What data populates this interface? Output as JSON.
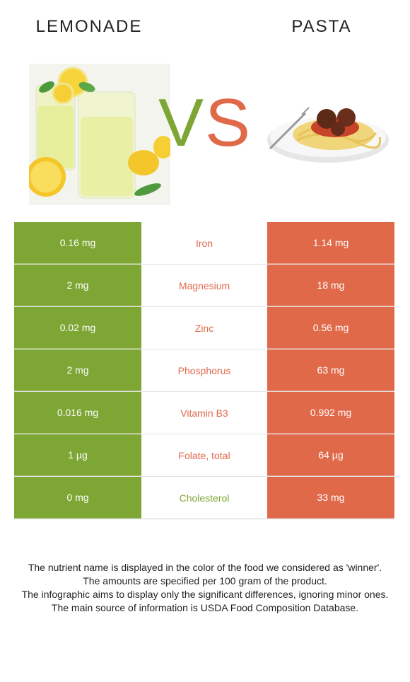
{
  "colors": {
    "left_food": "#7ea635",
    "right_food": "#e0694a"
  },
  "header": {
    "left_title": "LEMONADE",
    "right_title": "PASTA",
    "vs_v": "V",
    "vs_s": "S"
  },
  "images": {
    "left": "lemonade-glasses-image",
    "right": "spaghetti-meatballs-image"
  },
  "rows": [
    {
      "left": "0.16 mg",
      "nutrient": "Iron",
      "right": "1.14 mg",
      "winner": "right"
    },
    {
      "left": "2 mg",
      "nutrient": "Magnesium",
      "right": "18 mg",
      "winner": "right"
    },
    {
      "left": "0.02 mg",
      "nutrient": "Zinc",
      "right": "0.56 mg",
      "winner": "right"
    },
    {
      "left": "2 mg",
      "nutrient": "Phosphorus",
      "right": "63 mg",
      "winner": "right"
    },
    {
      "left": "0.016 mg",
      "nutrient": "Vitamin B3",
      "right": "0.992 mg",
      "winner": "right"
    },
    {
      "left": "1 µg",
      "nutrient": "Folate, total",
      "right": "64 µg",
      "winner": "right"
    },
    {
      "left": "0 mg",
      "nutrient": "Cholesterol",
      "right": "33 mg",
      "winner": "left"
    }
  ],
  "footnote": [
    "The nutrient name is displayed in the color of the food we considered as 'winner'.",
    "The amounts are specified per 100 gram of the product.",
    "The infographic aims to display only the significant differences, ignoring minor ones.",
    "The main source of information is USDA Food Composition Database."
  ]
}
